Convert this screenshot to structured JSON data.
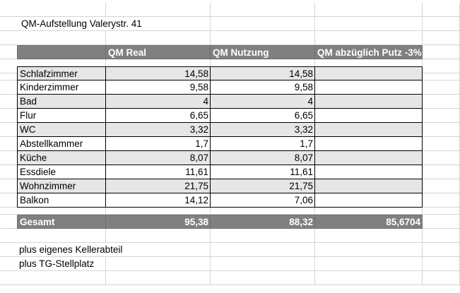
{
  "title": "QM-Aufstellung Valerystr. 41",
  "header": {
    "col_real": "QM Real",
    "col_nutzung": "QM Nutzung",
    "col_putz": "QM abzüglich Putz -3%"
  },
  "rows": [
    {
      "room": "Schlafzimmer",
      "real": "14,58",
      "nutzung": "14,58"
    },
    {
      "room": "Kinderzimmer",
      "real": "9,58",
      "nutzung": "9,58"
    },
    {
      "room": "Bad",
      "real": "4",
      "nutzung": "4"
    },
    {
      "room": "Flur",
      "real": "6,65",
      "nutzung": "6,65"
    },
    {
      "room": "WC",
      "real": "3,32",
      "nutzung": "3,32"
    },
    {
      "room": "Abstellkammer",
      "real": "1,7",
      "nutzung": "1,7"
    },
    {
      "room": "Küche",
      "real": "8,07",
      "nutzung": "8,07"
    },
    {
      "room": "Essdiele",
      "real": "11,61",
      "nutzung": "11,61"
    },
    {
      "room": "Wohnzimmer",
      "real": "21,75",
      "nutzung": "21,75"
    },
    {
      "room": "Balkon",
      "real": "14,12",
      "nutzung": "7,06"
    }
  ],
  "total": {
    "label": "Gesamt",
    "real": "95,38",
    "nutzung": "88,32",
    "putz": "85,6704"
  },
  "notes": {
    "line1": "plus eigenes Kellerabteil",
    "line2": "plus TG-Stellplatz"
  },
  "colors": {
    "header_bg": "#808080",
    "shade_bg": "#e6e6e6",
    "grid": "#d4d4d4"
  }
}
